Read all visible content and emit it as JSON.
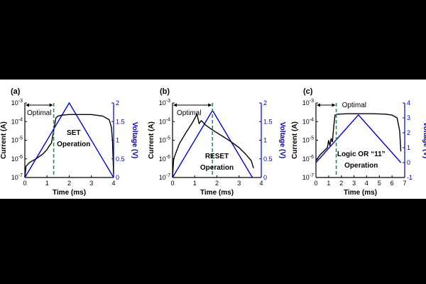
{
  "chart_data": [
    {
      "panel": "(a)",
      "type": "line",
      "xlabel": "Time (ms)",
      "ylabel": "Current (A)",
      "y2label": "Voltage (V)",
      "xlim": [
        0,
        4
      ],
      "xticks": [
        "0",
        "1",
        "2",
        "3",
        "4"
      ],
      "ylim_log10": [
        -7,
        -3
      ],
      "y2lim": [
        0,
        2
      ],
      "y2ticks": [
        "0",
        "0.5",
        "1",
        "1.5",
        "2"
      ],
      "annotation": [
        "SET",
        "Operation"
      ],
      "optimal_label": "Optimal",
      "optimal_time": 1.3,
      "series": [
        {
          "x": [
            0,
            0.05,
            0.2,
            0.5,
            0.8,
            1.0,
            1.1,
            1.2,
            1.4,
            1.5,
            1.7,
            2.0,
            2.5,
            3.0,
            3.5,
            3.8,
            3.9,
            3.95,
            4.0
          ],
          "log10_current": [
            -7.0,
            -6.4,
            -6.2,
            -6.0,
            -5.75,
            -5.5,
            -5.3,
            -5.15,
            -3.8,
            -3.7,
            -3.65,
            -3.62,
            -3.62,
            -3.62,
            -3.7,
            -3.9,
            -4.3,
            -5.0,
            -6.8
          ]
        },
        {
          "x": [
            0,
            2,
            4
          ],
          "voltage": [
            0,
            2,
            0
          ]
        }
      ]
    },
    {
      "panel": "(b)",
      "type": "line",
      "xlabel": "Time (ms)",
      "ylabel": "Current (A)",
      "y2label": "Voltage (V)",
      "xlim": [
        0,
        4
      ],
      "xticks": [
        "0",
        "1",
        "2",
        "3",
        "4"
      ],
      "ylim_log10": [
        -7,
        -3
      ],
      "y2lim": [
        0,
        2
      ],
      "y2ticks": [
        "0",
        "0.5",
        "1",
        "1.5",
        "2"
      ],
      "annotation": [
        "RESET",
        "Operation"
      ],
      "optimal_label": "Optimal",
      "optimal_time": 1.8,
      "series": [
        {
          "x": [
            0,
            0.05,
            0.3,
            0.6,
            0.9,
            1.1,
            1.2,
            1.3,
            1.5,
            1.8,
            2.2,
            2.6,
            3.0,
            3.3,
            3.55,
            3.65
          ],
          "log10_current": [
            -7.0,
            -6.0,
            -5.2,
            -4.6,
            -4.05,
            -3.6,
            -4.1,
            -3.95,
            -4.2,
            -4.45,
            -4.75,
            -5.05,
            -5.4,
            -5.75,
            -6.1,
            -6.5
          ]
        },
        {
          "x": [
            0,
            1.8,
            3.6
          ],
          "voltage": [
            0,
            1.8,
            0
          ]
        }
      ]
    },
    {
      "panel": "(c)",
      "type": "line",
      "xlabel": "Time (ms)",
      "ylabel": "Current (A)",
      "y2label": "Voltage (V)",
      "xlim": [
        0,
        7
      ],
      "xticks": [
        "0",
        "1",
        "2",
        "3",
        "4",
        "5",
        "6",
        "7"
      ],
      "ylim_log10": [
        -7,
        -3
      ],
      "y2lim": [
        -1,
        4
      ],
      "y2ticks": [
        "-1",
        "0",
        "1",
        "2",
        "3",
        "4"
      ],
      "annotation": [
        "Logic OR “11”",
        "Operation"
      ],
      "optimal_label": "Optimal",
      "optimal_time": 1.6,
      "series": [
        {
          "x": [
            0,
            0.3,
            0.6,
            0.9,
            1.0,
            1.1,
            1.2,
            1.3,
            1.4,
            1.5,
            1.7,
            2.5,
            3.5,
            4.5,
            5.5,
            6.0,
            6.4,
            6.6,
            6.7
          ],
          "log10_current": [
            -6.1,
            -5.8,
            -5.6,
            -5.4,
            -5.0,
            -5.3,
            -4.9,
            -5.1,
            -4.3,
            -3.65,
            -3.6,
            -3.58,
            -3.58,
            -3.58,
            -3.6,
            -3.65,
            -3.8,
            -4.5,
            -5.6
          ]
        },
        {
          "x": [
            0,
            3.35,
            6.7
          ],
          "voltage": [
            0,
            3.2,
            0
          ]
        }
      ]
    }
  ]
}
